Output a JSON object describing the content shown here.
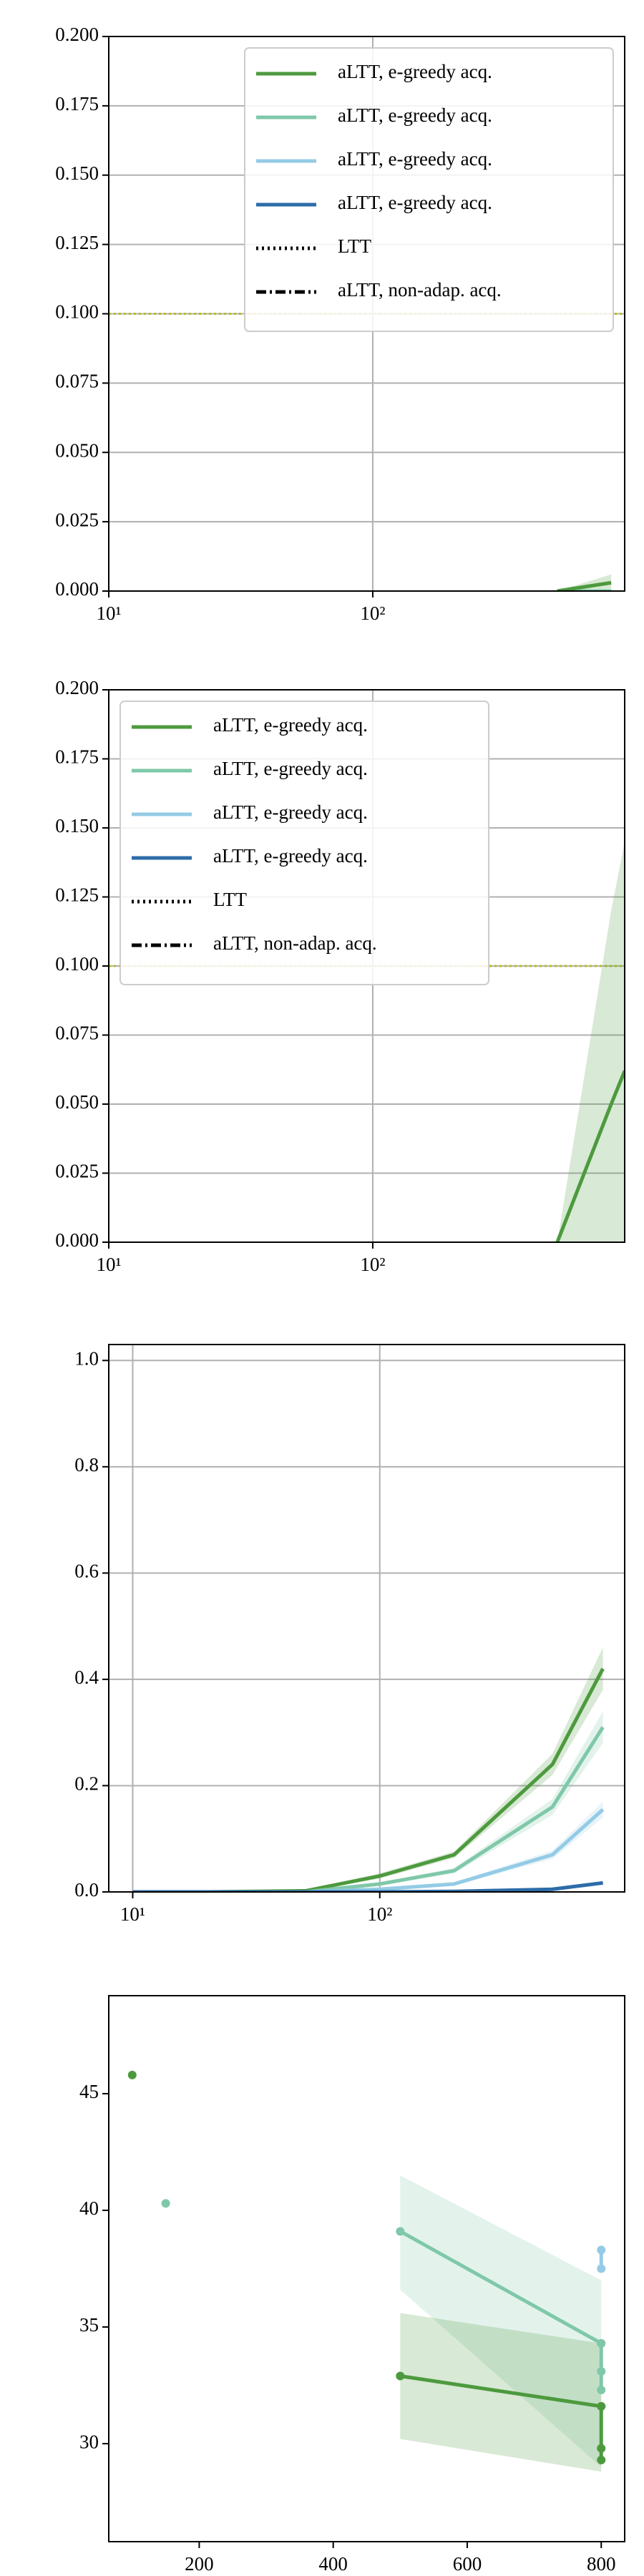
{
  "chart_data": [
    {
      "type": "line",
      "xscale": "log",
      "xlim": [
        10,
        900
      ],
      "xticks": [
        {
          "value": 10,
          "label": "10¹"
        },
        {
          "value": 100,
          "label": "10²"
        }
      ],
      "ylim": [
        0,
        0.2
      ],
      "yticks": [
        {
          "value": 0,
          "label": "0.000"
        },
        0.025,
        {
          "value": 0.05,
          "label": "0.050"
        },
        0.075,
        {
          "value": 0.1,
          "label": "0.100"
        },
        0.125,
        {
          "value": 0.15,
          "label": "0.150"
        },
        0.175,
        {
          "value": 0.2,
          "label": "0.200"
        }
      ],
      "grid": true,
      "hline": {
        "value": 0.1,
        "color": "#bcbd22"
      },
      "legend_position": "upper right",
      "legend": [
        {
          "label": "aLTT, e-greedy acq.",
          "color": "#4d9a3e",
          "style": "solid"
        },
        {
          "label": "aLTT, e-greedy acq.",
          "color": "#7fc8a9",
          "style": "solid"
        },
        {
          "label": "aLTT, e-greedy acq.",
          "color": "#94cbe6",
          "style": "solid"
        },
        {
          "label": "aLTT, e-greedy acq.",
          "color": "#2c6ca8",
          "style": "solid"
        },
        {
          "label": "LTT",
          "color": "#000000",
          "style": "dotted"
        },
        {
          "label": "aLTT, non-adap. acq.",
          "color": "#000000",
          "style": "dashdot"
        }
      ],
      "series": [
        {
          "color": "#2c6ca8",
          "x": [
            500,
            800
          ],
          "values": [
            0,
            0
          ]
        },
        {
          "color": "#94cbe6",
          "x": [
            500,
            800
          ],
          "values": [
            0,
            0
          ]
        },
        {
          "color": "#7fc8a9",
          "x": [
            500,
            800
          ],
          "values": [
            0,
            0
          ]
        },
        {
          "color": "#4d9a3e",
          "x": [
            500,
            800
          ],
          "values": [
            0,
            0.003
          ],
          "lower": [
            0,
            0
          ],
          "upper": [
            0,
            0.006
          ]
        }
      ]
    },
    {
      "type": "line",
      "xscale": "log",
      "xlim": [
        10,
        900
      ],
      "xticks": [
        {
          "value": 10,
          "label": "10¹"
        },
        {
          "value": 100,
          "label": "10²"
        }
      ],
      "ylim": [
        0,
        0.2
      ],
      "yticks": [
        {
          "value": 0,
          "label": "0.000"
        },
        0.025,
        {
          "value": 0.05,
          "label": "0.050"
        },
        0.075,
        {
          "value": 0.1,
          "label": "0.100"
        },
        0.125,
        {
          "value": 0.15,
          "label": "0.150"
        },
        0.175,
        {
          "value": 0.2,
          "label": "0.200"
        }
      ],
      "grid": true,
      "hline": {
        "value": 0.1,
        "color": "#bcbd22"
      },
      "legend_position": "upper left",
      "legend": [
        {
          "label": "aLTT, e-greedy acq.",
          "color": "#4d9a3e",
          "style": "solid"
        },
        {
          "label": "aLTT, e-greedy acq.",
          "color": "#7fc8a9",
          "style": "solid"
        },
        {
          "label": "aLTT, e-greedy acq.",
          "color": "#94cbe6",
          "style": "solid"
        },
        {
          "label": "aLTT, e-greedy acq.",
          "color": "#2c6ca8",
          "style": "solid"
        },
        {
          "label": "LTT",
          "color": "#000000",
          "style": "dotted"
        },
        {
          "label": "aLTT, non-adap. acq.",
          "color": "#000000",
          "style": "dashdot"
        }
      ],
      "series": [
        {
          "color": "#4d9a3e",
          "x": [
            500,
            800,
            900
          ],
          "values": [
            0,
            0.05,
            0.062
          ],
          "lower": [
            0,
            0,
            0
          ],
          "upper": [
            0,
            0.12,
            0.145
          ]
        }
      ]
    },
    {
      "type": "line",
      "xscale": "log",
      "xlim": [
        8,
        980
      ],
      "xticks": [
        {
          "value": 10,
          "label": "10¹"
        },
        {
          "value": 100,
          "label": "10²"
        }
      ],
      "ylim": [
        0,
        1.03
      ],
      "yticks": [
        {
          "value": 0,
          "label": "0.0"
        },
        0.2,
        0.4,
        0.6,
        0.8,
        {
          "value": 1,
          "label": "1.0"
        }
      ],
      "grid": true,
      "series": [
        {
          "color": "#4d9a3e",
          "x": [
            10,
            20,
            50,
            100,
            200,
            500,
            800
          ],
          "values": [
            0,
            0,
            0.002,
            0.03,
            0.07,
            0.24,
            0.42
          ],
          "lower": [
            0,
            0,
            0.001,
            0.025,
            0.064,
            0.22,
            0.38
          ],
          "upper": [
            0,
            0,
            0.003,
            0.035,
            0.076,
            0.26,
            0.46
          ]
        },
        {
          "color": "#7fc8a9",
          "x": [
            10,
            20,
            50,
            100,
            200,
            500,
            800
          ],
          "values": [
            0,
            0,
            0,
            0.015,
            0.04,
            0.16,
            0.31
          ],
          "lower": [
            0,
            0,
            0,
            0.012,
            0.035,
            0.145,
            0.28
          ],
          "upper": [
            0,
            0,
            0,
            0.018,
            0.045,
            0.175,
            0.34
          ]
        },
        {
          "color": "#94cbe6",
          "x": [
            10,
            20,
            50,
            100,
            200,
            500,
            800
          ],
          "values": [
            0,
            0,
            0,
            0.005,
            0.015,
            0.07,
            0.155
          ],
          "lower": [
            0,
            0,
            0,
            0.004,
            0.012,
            0.062,
            0.14
          ],
          "upper": [
            0,
            0,
            0,
            0.006,
            0.018,
            0.078,
            0.17
          ]
        },
        {
          "color": "#2c6ca8",
          "x": [
            10,
            20,
            50,
            100,
            200,
            500,
            800
          ],
          "values": [
            0,
            0,
            0,
            0,
            0.001,
            0.005,
            0.017
          ]
        }
      ]
    },
    {
      "type": "line",
      "xscale": "linear",
      "xlim": [
        65,
        835
      ],
      "xticks": [
        200,
        400,
        600,
        800
      ],
      "ylim": [
        25.8,
        49.2
      ],
      "yticks": [
        30,
        35,
        40,
        45
      ],
      "grid": false,
      "series": [
        {
          "color": "#7fc8a9",
          "x": [
            500,
            800
          ],
          "values": [
            39.1,
            34.3
          ],
          "lower": [
            36.6,
            29.0
          ],
          "upper": [
            41.5,
            37.0
          ],
          "markers": true
        },
        {
          "color": "#4d9a3e",
          "x": [
            500,
            800
          ],
          "values": [
            32.9,
            31.6
          ],
          "lower": [
            30.2,
            28.8
          ],
          "upper": [
            35.6,
            34.3
          ],
          "markers": true
        },
        {
          "color": "#4d9a3e",
          "x": [
            100
          ],
          "values": [
            45.8
          ],
          "markers": true
        },
        {
          "color": "#7fc8a9",
          "x": [
            150
          ],
          "values": [
            40.3
          ],
          "markers": true
        },
        {
          "color": "#94cbe6",
          "x": [
            800,
            800
          ],
          "values": [
            38.3,
            37.5
          ],
          "markers": true
        },
        {
          "color": "#7fc8a9",
          "x": [
            800,
            800,
            800
          ],
          "values": [
            34.3,
            33.1,
            32.3
          ],
          "markers": true
        },
        {
          "color": "#4d9a3e",
          "x": [
            800,
            800,
            800
          ],
          "values": [
            31.6,
            29.8,
            29.3
          ],
          "markers": true
        }
      ]
    }
  ]
}
